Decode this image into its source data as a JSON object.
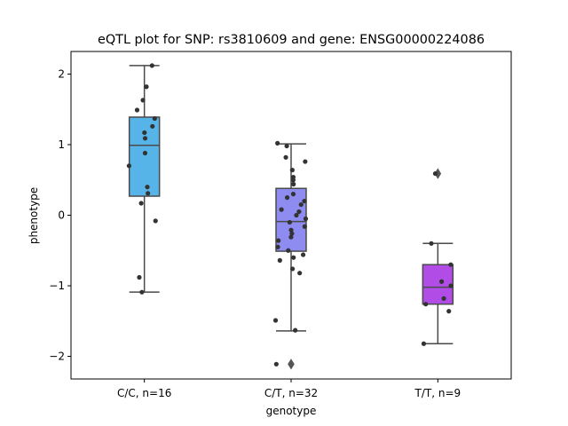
{
  "chart_data": {
    "type": "box",
    "title": "eQTL plot for SNP: rs3810609 and gene: ENSG00000224086",
    "xlabel": "genotype",
    "ylabel": "phenotype",
    "ylim": [
      -2.32,
      2.32
    ],
    "yticks": [
      2,
      1,
      0,
      -1,
      -2
    ],
    "ytick_labels": [
      "2",
      "1",
      "0",
      "−1",
      "−2"
    ],
    "grid": false,
    "groups": [
      {
        "label": "C/C, n=16",
        "color": "#56b4e9",
        "box": {
          "q1": 0.27,
          "median": 0.99,
          "q3": 1.39,
          "whisker_low": -1.09,
          "whisker_high": 2.12
        },
        "outliers": [],
        "points": [
          2.12,
          1.82,
          1.63,
          1.49,
          1.37,
          1.26,
          1.17,
          1.09,
          0.88,
          0.7,
          0.4,
          0.31,
          0.17,
          -0.08,
          -0.88,
          -1.09
        ]
      },
      {
        "label": "C/T, n=32",
        "color": "#8e8cf0",
        "box": {
          "q1": -0.51,
          "median": -0.09,
          "q3": 0.38,
          "whisker_low": -1.64,
          "whisker_high": 1.01
        },
        "outliers": [
          -2.11
        ],
        "points": [
          1.02,
          0.98,
          0.82,
          0.76,
          0.64,
          0.54,
          0.5,
          0.44,
          0.3,
          0.25,
          0.2,
          0.15,
          0.08,
          0.05,
          0.0,
          -0.05,
          -0.1,
          -0.16,
          -0.21,
          -0.26,
          -0.31,
          -0.36,
          -0.45,
          -0.5,
          -0.56,
          -0.6,
          -0.64,
          -0.76,
          -0.82,
          -1.49,
          -1.63,
          -2.11
        ]
      },
      {
        "label": "T/T, n=9",
        "color": "#b14de6",
        "box": {
          "q1": -1.26,
          "median": -1.02,
          "q3": -0.7,
          "whisker_low": -1.82,
          "whisker_high": -0.4
        },
        "outliers": [
          0.59
        ],
        "points": [
          0.59,
          -0.4,
          -0.7,
          -0.94,
          -1.0,
          -1.18,
          -1.26,
          -1.36,
          -1.82
        ]
      }
    ]
  }
}
